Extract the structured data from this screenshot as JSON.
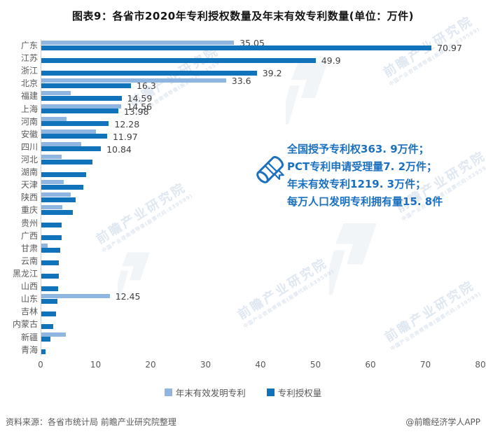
{
  "page": {
    "title": "图表9：各省市2020年专利授权数量及年末有效专利数量(单位：万件)"
  },
  "chart_data": {
    "type": "bar",
    "orientation": "horizontal",
    "unit": "万件",
    "xlim": [
      0,
      80
    ],
    "x_ticks": [
      0,
      10,
      20,
      30,
      40,
      50,
      60,
      70,
      80
    ],
    "grid": false,
    "legend_position": "bottom",
    "categories": [
      "广东",
      "江苏",
      "浙江",
      "北京",
      "福建",
      "上海",
      "河南",
      "安徽",
      "四川",
      "河北",
      "湖南",
      "天津",
      "陕西",
      "重庆",
      "贵州",
      "广西",
      "甘肃",
      "云南",
      "黑龙江",
      "山西",
      "山东",
      "吉林",
      "内蒙古",
      "新疆",
      "青海"
    ],
    "series": [
      {
        "name": "年末有效发明专利",
        "color": "#8fb5e1",
        "values": [
          35.05,
          null,
          null,
          33.6,
          5.4,
          14.56,
          4.6,
          9.9,
          7.3,
          3.7,
          null,
          4.1,
          5.3,
          3.8,
          null,
          null,
          1.1,
          null,
          null,
          null,
          12.45,
          null,
          null,
          4.4,
          null
        ],
        "labels": [
          "35.05",
          null,
          null,
          "33.6",
          null,
          "14.56",
          null,
          null,
          null,
          null,
          null,
          null,
          null,
          null,
          null,
          null,
          null,
          null,
          null,
          null,
          "12.45",
          null,
          null,
          null,
          null
        ]
      },
      {
        "name": "专利授权量",
        "color": "#1173b9",
        "values": [
          70.97,
          49.9,
          39.2,
          16.3,
          14.59,
          13.98,
          12.28,
          11.97,
          10.84,
          9.3,
          8.1,
          7.7,
          6.2,
          5.7,
          3.7,
          3.7,
          3.4,
          3.2,
          3.2,
          3.0,
          2.9,
          2.7,
          2.2,
          1.7,
          0.8
        ],
        "labels": [
          "70.97",
          "49.9",
          "39.2",
          "16.3",
          "14.59",
          "13.98",
          "12.28",
          "11.97",
          "10.84",
          null,
          null,
          null,
          null,
          null,
          null,
          null,
          null,
          null,
          null,
          null,
          null,
          null,
          null,
          null,
          null
        ]
      }
    ]
  },
  "annotation": {
    "lines": [
      "全国授予专利权363. 9万件；",
      "PCT专利申请受理量7. 2万件；",
      "年末有效专利1219. 3万件；",
      "每万人口发明专利拥有量15. 8件"
    ],
    "color": "#1c70c0",
    "icon": "certificate-scroll-icon"
  },
  "footer": {
    "source": "资料来源：各省市统计局 前瞻产业研究院整理",
    "credit": "@前瞻经济学人APP"
  },
  "watermark": {
    "text": "前瞻产业研究院",
    "subtext": "中国产业咨询领导者(股票代码:839599)"
  },
  "colors": {
    "effective_patents_bar": "#8fb5e1",
    "granted_patents_bar": "#1173b9",
    "annotation_text": "#1c70c0",
    "axis_text": "#595959"
  }
}
